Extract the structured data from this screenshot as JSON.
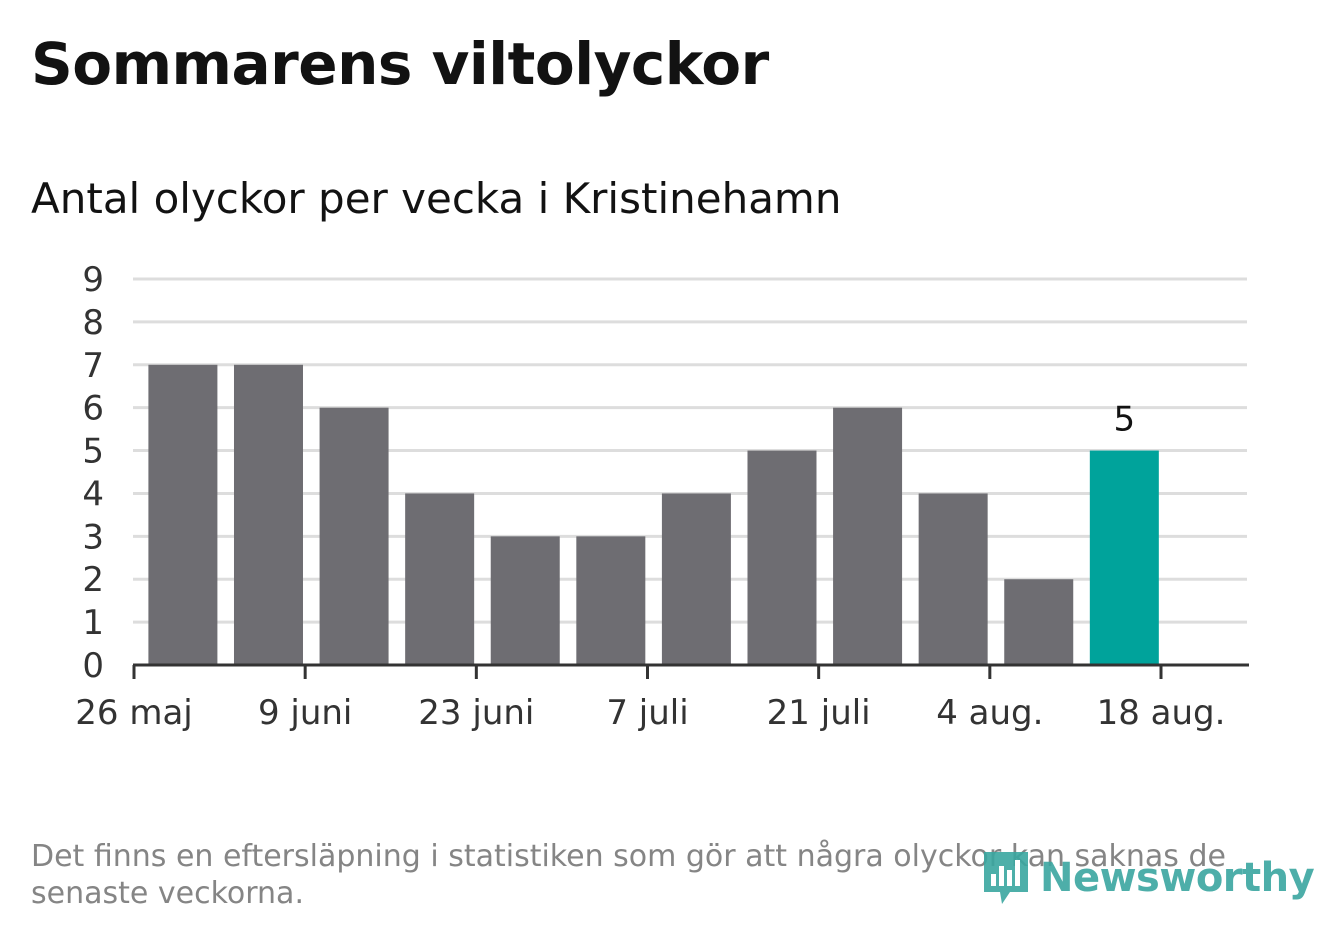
{
  "title": "Sommarens viltolyckor",
  "subtitle": "Antal olyckor per vecka i Kristinehamn",
  "note": "Det finns en eftersläpning i statistiken som gör att några olyckor kan saknas de senaste veckorna.",
  "logo": {
    "text": "Newsworthy",
    "icon": "newsworthy-logo-icon"
  },
  "colors": {
    "bar": "#6e6d72",
    "highlight": "#00a39b",
    "grid": "#dddddd",
    "axis": "#333333"
  },
  "chart_data": {
    "type": "bar",
    "title": "Sommarens viltolyckor",
    "subtitle": "Antal olyckor per vecka i Kristinehamn",
    "xlabel": "",
    "ylabel": "",
    "x": [
      "2024-06-02",
      "2024-06-09",
      "2024-06-16",
      "2024-06-23",
      "2024-06-30",
      "2024-07-07",
      "2024-07-14",
      "2024-07-21",
      "2024-07-28",
      "2024-08-04",
      "2024-08-11",
      "2024-08-18"
    ],
    "values": [
      7,
      7,
      6,
      4,
      3,
      3,
      4,
      5,
      6,
      4,
      2,
      5
    ],
    "highlight_last": true,
    "data_labels": [
      {
        "index": 11,
        "text": "5"
      }
    ],
    "ylim": [
      0,
      9
    ],
    "yticks": [
      "0",
      "1",
      "2",
      "3",
      "4",
      "5",
      "6",
      "7",
      "8",
      "9"
    ],
    "xticks": [
      {
        "date": "2024-05-26",
        "label": "26 maj"
      },
      {
        "date": "2024-06-09",
        "label": "9 juni"
      },
      {
        "date": "2024-06-23",
        "label": "23 juni"
      },
      {
        "date": "2024-07-07",
        "label": "7 juli"
      },
      {
        "date": "2024-07-21",
        "label": "21 juli"
      },
      {
        "date": "2024-08-04",
        "label": "4 aug."
      },
      {
        "date": "2024-08-18",
        "label": "18 aug."
      }
    ],
    "grid": true,
    "legend": "none"
  }
}
